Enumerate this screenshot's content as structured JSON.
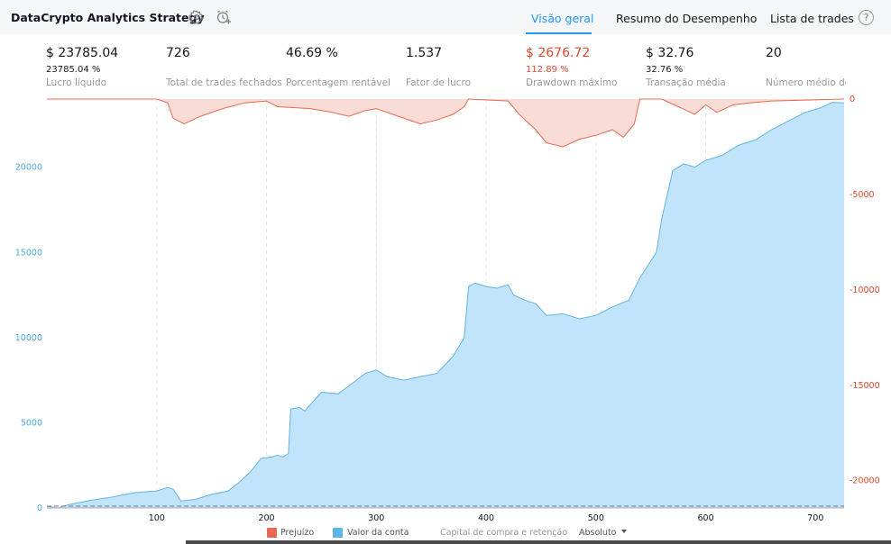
{
  "header": {
    "title": "DataCrypto Analytics Strategy",
    "tabs": [
      {
        "label": "Visão geral",
        "active": true
      },
      {
        "label": "Resumo do Desempenho",
        "active": false
      },
      {
        "label": "Lista de trades",
        "active": false
      }
    ],
    "help_label": "?"
  },
  "stats": [
    {
      "value": "$ 23785.04",
      "sub": "23785.04 %",
      "label": "Lucro líquido"
    },
    {
      "value": "726",
      "sub": "",
      "label": "Total de trades fechados"
    },
    {
      "value": "46.69 %",
      "sub": "",
      "label": "Porcentagem rentável"
    },
    {
      "value": "1.537",
      "sub": "",
      "label": "Fator de lucro"
    },
    {
      "value": "$ 2676.72",
      "sub": "112.89 %",
      "label": "Drawdown máximo",
      "red": true
    },
    {
      "value": "$ 32.76",
      "sub": "32.76 %",
      "label": "Transação média"
    },
    {
      "value": "20",
      "sub": "",
      "label": "Número médio de"
    }
  ],
  "colors": {
    "equity_line": "#5fb4ea",
    "equity_fill": "#c2e4fa",
    "drawdown_line": "#e8694f",
    "drawdown_fill": "#f9dcd6",
    "left_axis": "#4aa8e4",
    "right_axis": "#e0492c",
    "accent": "#2196f3"
  },
  "legend": {
    "drawdown": "Prejuízo",
    "equity": "Valor da conta",
    "buy_hold": "Capital de compra e retenção",
    "mode": "Absoluto"
  },
  "chart_data": {
    "type": "area",
    "x": {
      "label": "",
      "range": [
        0,
        726
      ],
      "ticks": [
        100,
        200,
        300,
        400,
        500,
        600,
        700
      ]
    },
    "y_left": {
      "label": "",
      "range": [
        0,
        24000
      ],
      "ticks": [
        0,
        5000,
        10000,
        15000,
        20000
      ]
    },
    "y_right": {
      "label": "",
      "range": [
        -24000,
        0
      ],
      "ticks": [
        0,
        -5000,
        -10000,
        -15000,
        -20000
      ]
    },
    "legend_position": "bottom",
    "grid": "vertical dashed",
    "series": [
      {
        "name": "Valor da conta",
        "axis": "left",
        "points": [
          [
            0,
            100
          ],
          [
            10,
            0
          ],
          [
            20,
            200
          ],
          [
            40,
            450
          ],
          [
            60,
            650
          ],
          [
            80,
            900
          ],
          [
            100,
            1000
          ],
          [
            110,
            1200
          ],
          [
            115,
            1100
          ],
          [
            122,
            400
          ],
          [
            135,
            500
          ],
          [
            150,
            800
          ],
          [
            165,
            1000
          ],
          [
            175,
            1500
          ],
          [
            185,
            2100
          ],
          [
            195,
            2900
          ],
          [
            205,
            3000
          ],
          [
            210,
            3100
          ],
          [
            215,
            3000
          ],
          [
            220,
            3200
          ],
          [
            222,
            5800
          ],
          [
            230,
            5900
          ],
          [
            235,
            5700
          ],
          [
            250,
            6800
          ],
          [
            265,
            6700
          ],
          [
            280,
            7400
          ],
          [
            290,
            7900
          ],
          [
            300,
            8100
          ],
          [
            310,
            7700
          ],
          [
            325,
            7500
          ],
          [
            340,
            7700
          ],
          [
            355,
            7900
          ],
          [
            370,
            8900
          ],
          [
            380,
            10000
          ],
          [
            384,
            13000
          ],
          [
            390,
            13200
          ],
          [
            400,
            13000
          ],
          [
            410,
            12900
          ],
          [
            420,
            13100
          ],
          [
            425,
            12500
          ],
          [
            435,
            12200
          ],
          [
            445,
            12000
          ],
          [
            455,
            11300
          ],
          [
            470,
            11400
          ],
          [
            485,
            11100
          ],
          [
            500,
            11300
          ],
          [
            515,
            11800
          ],
          [
            530,
            12200
          ],
          [
            540,
            13500
          ],
          [
            555,
            15000
          ],
          [
            560,
            17000
          ],
          [
            570,
            19800
          ],
          [
            580,
            20200
          ],
          [
            590,
            20000
          ],
          [
            600,
            20400
          ],
          [
            615,
            20700
          ],
          [
            630,
            21300
          ],
          [
            645,
            21600
          ],
          [
            660,
            22200
          ],
          [
            675,
            22700
          ],
          [
            690,
            23200
          ],
          [
            705,
            23500
          ],
          [
            715,
            23800
          ],
          [
            726,
            23785
          ]
        ]
      },
      {
        "name": "Prejuízo",
        "axis": "right",
        "points": [
          [
            0,
            0
          ],
          [
            100,
            0
          ],
          [
            110,
            -200
          ],
          [
            115,
            -1000
          ],
          [
            125,
            -1300
          ],
          [
            140,
            -900
          ],
          [
            160,
            -500
          ],
          [
            180,
            -200
          ],
          [
            200,
            -100
          ],
          [
            210,
            -400
          ],
          [
            240,
            -500
          ],
          [
            260,
            -700
          ],
          [
            275,
            -900
          ],
          [
            290,
            -600
          ],
          [
            300,
            -500
          ],
          [
            320,
            -900
          ],
          [
            340,
            -1300
          ],
          [
            355,
            -1100
          ],
          [
            370,
            -800
          ],
          [
            380,
            -400
          ],
          [
            384,
            0
          ],
          [
            420,
            -100
          ],
          [
            430,
            -800
          ],
          [
            445,
            -1600
          ],
          [
            455,
            -2300
          ],
          [
            470,
            -2500
          ],
          [
            485,
            -2100
          ],
          [
            500,
            -1900
          ],
          [
            515,
            -1600
          ],
          [
            525,
            -2000
          ],
          [
            535,
            -1300
          ],
          [
            540,
            0
          ],
          [
            560,
            0
          ],
          [
            575,
            -400
          ],
          [
            590,
            -800
          ],
          [
            600,
            -300
          ],
          [
            610,
            -700
          ],
          [
            625,
            -300
          ],
          [
            640,
            -200
          ],
          [
            660,
            -100
          ],
          [
            726,
            0
          ]
        ]
      }
    ]
  }
}
